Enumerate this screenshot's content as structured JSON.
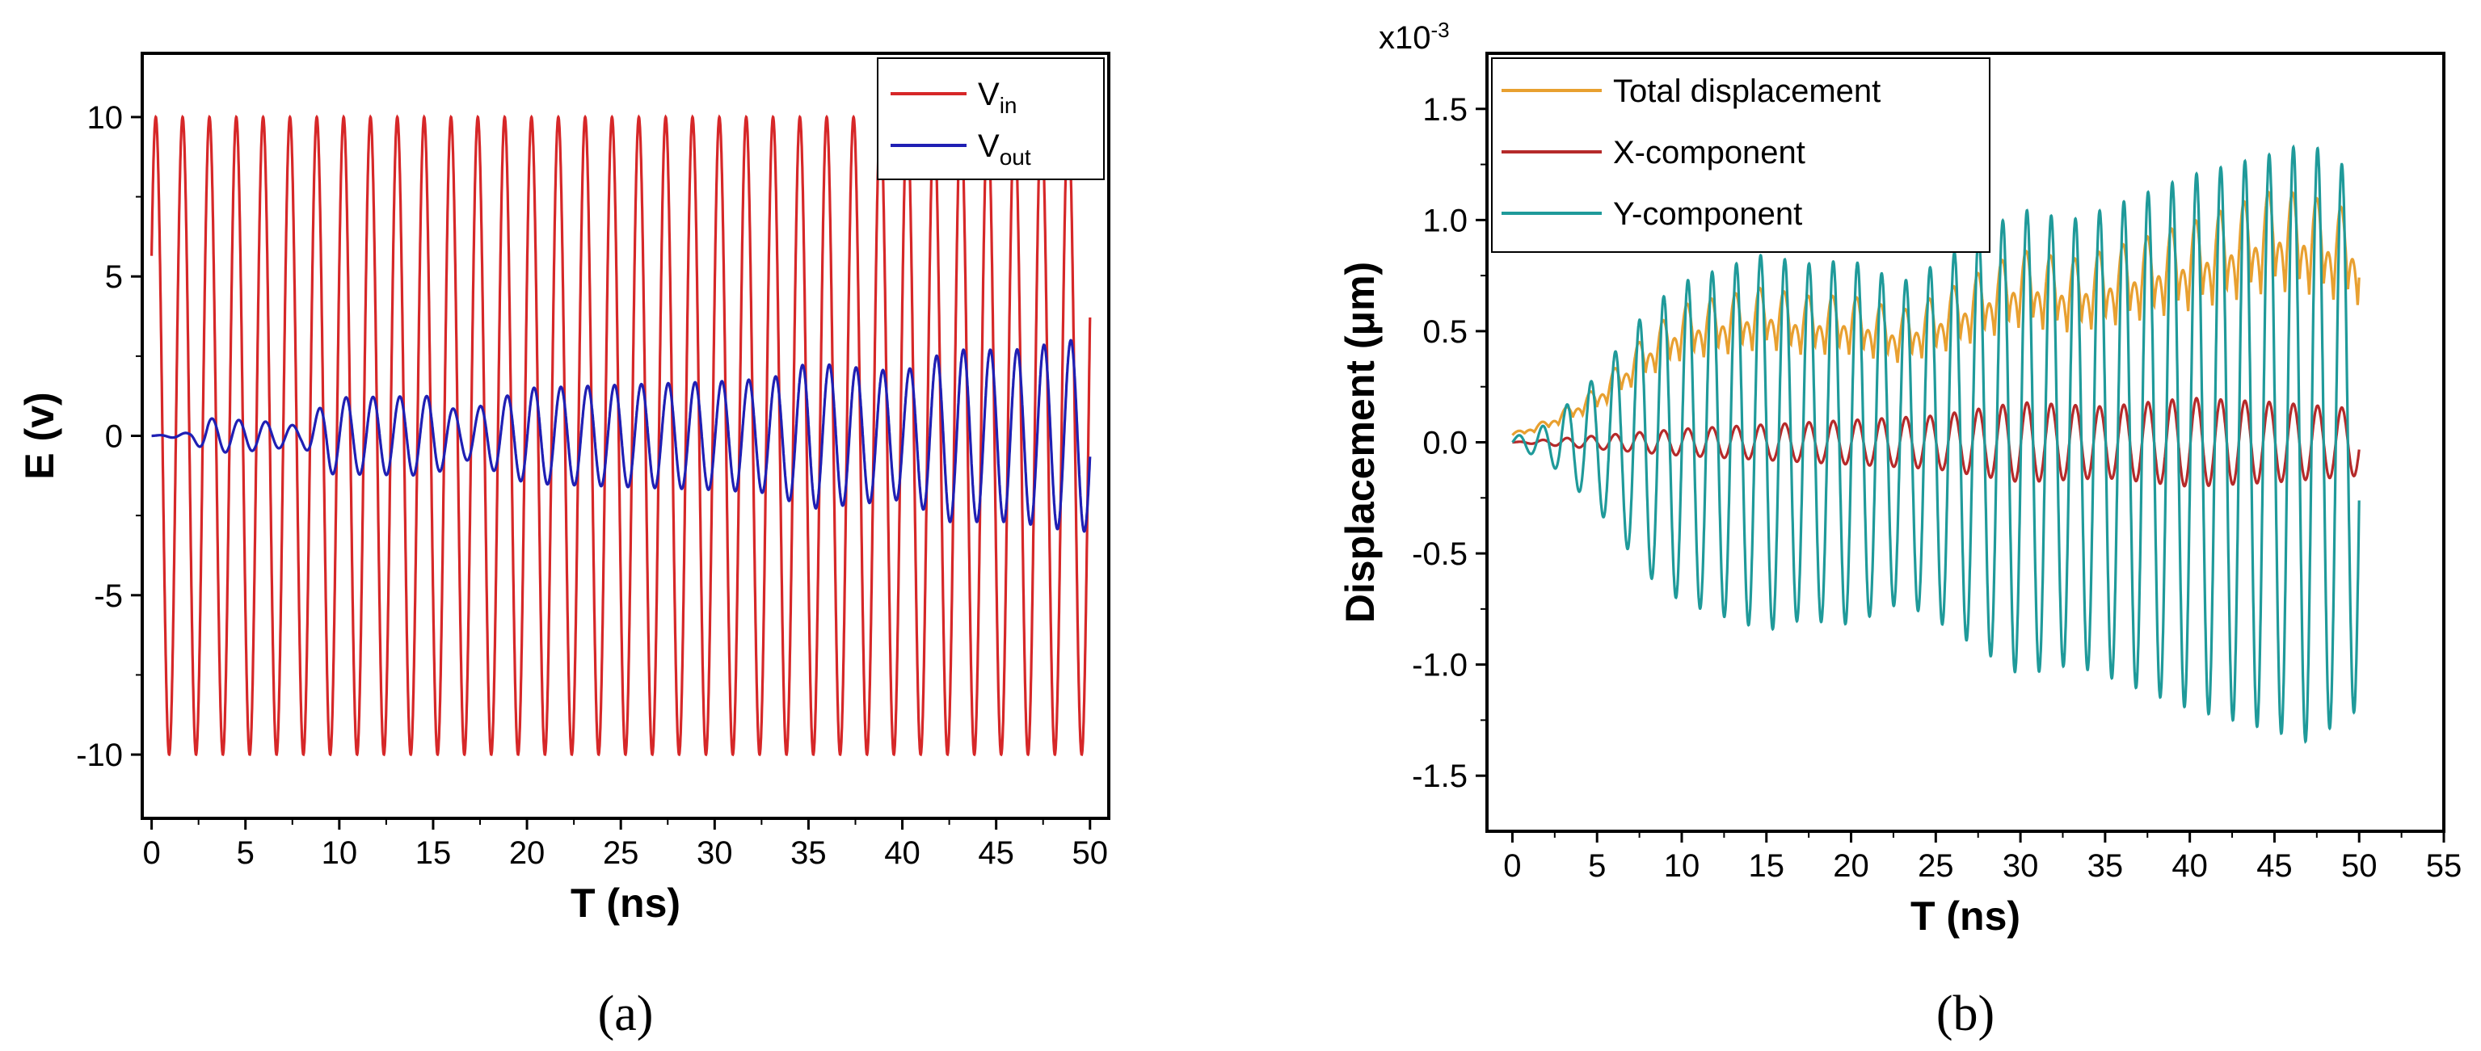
{
  "chart_data": [
    {
      "panel": "a",
      "panel_label": "(a)",
      "type": "line",
      "xlabel": "T (ns)",
      "ylabel": "E (v)",
      "xlim": [
        -0.5,
        51
      ],
      "ylim": [
        -12,
        12
      ],
      "xticks": [
        0,
        5,
        10,
        15,
        20,
        25,
        30,
        35,
        40,
        45,
        50
      ],
      "yticks": [
        -10,
        -5,
        0,
        5,
        10
      ],
      "legend": {
        "placement": "top-right",
        "entries": [
          {
            "base": "V",
            "sub": "in"
          },
          {
            "base": "V",
            "sub": "out"
          }
        ]
      },
      "series": [
        {
          "base": "V",
          "sub": "in",
          "color": "#d62728",
          "model": "sine",
          "amplitude": 10,
          "period_ns": 1.43,
          "t_range": [
            0,
            50
          ]
        },
        {
          "base": "V",
          "sub": "out",
          "color": "#1f1fb4",
          "model": "sine_modulated",
          "period_ns": 1.43,
          "t_range": [
            0,
            50
          ],
          "envelope_t": [
            0,
            2,
            3,
            6,
            8,
            9.5,
            15,
            16.5,
            20,
            25,
            30,
            33,
            35,
            40,
            42.5,
            46,
            49,
            50
          ],
          "envelope_a": [
            0,
            0.1,
            0.55,
            0.45,
            0.3,
            1.2,
            1.25,
            0.7,
            1.5,
            1.6,
            1.7,
            1.8,
            2.3,
            2.0,
            2.7,
            2.7,
            3.0,
            3.0
          ]
        }
      ]
    },
    {
      "panel": "b",
      "panel_label": "(b)",
      "type": "line",
      "xlabel": "T (ns)",
      "ylabel": "Displacement (μm)",
      "y_multiplier": "x10",
      "y_multiplier_exp": "-3",
      "xlim": [
        -1.5,
        55
      ],
      "ylim": [
        -1.75,
        1.75
      ],
      "xticks": [
        0,
        5,
        10,
        15,
        20,
        25,
        30,
        35,
        40,
        45,
        50,
        55
      ],
      "yticks": [
        -1.5,
        -1.0,
        -0.5,
        0.0,
        0.5,
        1.0,
        1.5
      ],
      "yticklabels": [
        "-1.5",
        "-1.0",
        "-0.5",
        "0.0",
        "0.5",
        "1.0",
        "1.5"
      ],
      "legend": {
        "placement": "top-left",
        "entries": [
          "Total displacement",
          "X-component",
          "Y-component"
        ]
      },
      "series": [
        {
          "name": "Total displacement",
          "color": "#e8a030",
          "model": "abs_sine_modulated",
          "period_ns": 1.43,
          "t_range": [
            0,
            50
          ],
          "envelope_t": [
            0,
            2,
            5,
            8,
            10,
            15,
            17,
            20,
            23,
            25,
            30,
            33,
            35,
            40,
            45,
            47,
            50
          ],
          "envelope_a": [
            0.05,
            0.12,
            0.3,
            0.6,
            0.75,
            0.85,
            0.8,
            0.8,
            0.72,
            0.8,
            1.05,
            1.0,
            1.05,
            1.2,
            1.38,
            1.35,
            1.25
          ]
        },
        {
          "name": "X-component",
          "color": "#b52a2a",
          "model": "sine_modulated",
          "period_ns": 1.43,
          "t_range": [
            0,
            50
          ],
          "envelope_t": [
            0,
            5,
            10,
            15,
            20,
            25,
            30,
            35,
            40,
            45,
            50
          ],
          "envelope_a": [
            0.0,
            0.03,
            0.06,
            0.08,
            0.1,
            0.12,
            0.18,
            0.16,
            0.2,
            0.18,
            0.15
          ]
        },
        {
          "name": "Y-component",
          "color": "#1f9a9a",
          "model": "sine_modulated",
          "period_ns": 1.43,
          "t_range": [
            0,
            50
          ],
          "envelope_t": [
            0,
            2,
            5,
            8,
            10,
            15,
            17,
            20,
            23,
            25,
            30,
            33,
            35,
            40,
            45,
            47,
            50
          ],
          "envelope_a": [
            0.02,
            0.08,
            0.3,
            0.6,
            0.72,
            0.85,
            0.8,
            0.82,
            0.72,
            0.8,
            1.05,
            1.0,
            1.05,
            1.2,
            1.3,
            1.35,
            1.2
          ]
        }
      ]
    }
  ]
}
